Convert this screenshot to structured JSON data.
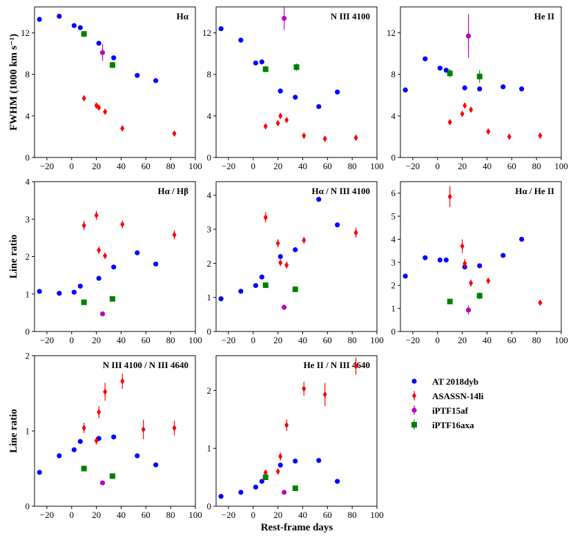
{
  "colors": {
    "AT 2018dyb": "#0000ff",
    "ASASSN-14li": "#ff0000",
    "iPTF15af": "#bf00bf",
    "iPTF16axa": "#008000"
  },
  "chart_data": [
    {
      "type": "scatter",
      "title": "Hα",
      "ylabel": "FWHM (1000 km s⁻¹)",
      "xlim": [
        -30,
        100
      ],
      "ylim": [
        0,
        14.5
      ],
      "xticks": [
        -20,
        0,
        20,
        40,
        60,
        80,
        100
      ],
      "xtick_labels": [
        "−20",
        "0",
        "20",
        "40",
        "60",
        "80",
        "100"
      ],
      "yticks": [
        0,
        4,
        8,
        12
      ],
      "ytick_labels": [
        "0",
        "4",
        "8",
        "12"
      ],
      "series": [
        {
          "name": "AT 2018dyb",
          "marker": "circle",
          "points": [
            [
              -26,
              13.3
            ],
            [
              -10,
              13.6
            ],
            [
              2,
              12.7
            ],
            [
              7,
              12.5
            ],
            [
              22,
              11.0
            ],
            [
              34,
              9.6
            ],
            [
              53,
              7.9
            ],
            [
              68,
              7.4
            ]
          ]
        },
        {
          "name": "ASASSN-14li",
          "marker": "diamond",
          "points": [
            [
              10,
              5.7,
              0.15
            ],
            [
              20,
              5.0,
              0.15
            ],
            [
              22,
              4.8,
              0.15
            ],
            [
              27,
              4.4,
              0.15
            ],
            [
              41,
              2.8,
              0.1
            ],
            [
              83,
              2.3,
              0.1
            ]
          ]
        },
        {
          "name": "iPTF15af",
          "marker": "circle",
          "points": [
            [
              25,
              10.1,
              0.8
            ]
          ]
        },
        {
          "name": "iPTF16axa",
          "marker": "square",
          "points": [
            [
              10,
              11.9,
              0.3
            ],
            [
              33,
              8.9,
              0.3
            ]
          ]
        }
      ]
    },
    {
      "type": "scatter",
      "title": "N III 4100",
      "xlim": [
        -30,
        100
      ],
      "ylim": [
        0,
        14.5
      ],
      "xticks": [
        -20,
        0,
        20,
        40,
        60,
        80,
        100
      ],
      "xtick_labels": [
        "−20",
        "0",
        "20",
        "40",
        "60",
        "80",
        "100"
      ],
      "yticks": [
        0,
        4,
        8,
        12
      ],
      "ytick_labels": [
        "0",
        "4",
        "8",
        "12"
      ],
      "series": [
        {
          "name": "AT 2018dyb",
          "marker": "circle",
          "points": [
            [
              -26,
              12.4
            ],
            [
              -10,
              11.3
            ],
            [
              2,
              9.1
            ],
            [
              7,
              9.2
            ],
            [
              22,
              6.4
            ],
            [
              34,
              5.8
            ],
            [
              53,
              4.9
            ],
            [
              68,
              6.3
            ]
          ]
        },
        {
          "name": "ASASSN-14li",
          "marker": "diamond",
          "points": [
            [
              10,
              3.0,
              0.2
            ],
            [
              20,
              3.3,
              0.2
            ],
            [
              22,
              4.0,
              0.2
            ],
            [
              27,
              3.6,
              0.2
            ],
            [
              41,
              2.1,
              0.15
            ],
            [
              58,
              1.8,
              0.15
            ],
            [
              83,
              1.9,
              0.15
            ]
          ]
        },
        {
          "name": "iPTF15af",
          "marker": "circle",
          "points": [
            [
              25,
              13.4,
              1.1
            ]
          ]
        },
        {
          "name": "iPTF16axa",
          "marker": "square",
          "points": [
            [
              10,
              8.5,
              0.3
            ],
            [
              35,
              8.7,
              0.35
            ]
          ]
        }
      ]
    },
    {
      "type": "scatter",
      "title": "He II",
      "xlim": [
        -30,
        100
      ],
      "ylim": [
        0,
        14.5
      ],
      "xticks": [
        -20,
        0,
        20,
        40,
        60,
        80,
        100
      ],
      "xtick_labels": [
        "−20",
        "0",
        "20",
        "40",
        "60",
        "80",
        "100"
      ],
      "yticks": [
        0,
        4,
        8,
        12
      ],
      "ytick_labels": [
        "0",
        "4",
        "8",
        "12"
      ],
      "series": [
        {
          "name": "AT 2018dyb",
          "marker": "circle",
          "points": [
            [
              -26,
              6.5
            ],
            [
              -10,
              9.5
            ],
            [
              2,
              8.6
            ],
            [
              7,
              8.4
            ],
            [
              22,
              6.7
            ],
            [
              34,
              6.6
            ],
            [
              53,
              6.8
            ],
            [
              68,
              6.6
            ]
          ]
        },
        {
          "name": "ASASSN-14li",
          "marker": "diamond",
          "points": [
            [
              10,
              3.4,
              0.2
            ],
            [
              20,
              4.2,
              0.2
            ],
            [
              22,
              5.0,
              0.25
            ],
            [
              27,
              4.6,
              0.2
            ],
            [
              41,
              2.5,
              0.2
            ],
            [
              58,
              2.0,
              0.2
            ],
            [
              83,
              2.1,
              0.2
            ]
          ]
        },
        {
          "name": "iPTF15af",
          "marker": "circle",
          "points": [
            [
              25,
              11.7,
              2.1
            ]
          ]
        },
        {
          "name": "iPTF16axa",
          "marker": "square",
          "points": [
            [
              10,
              8.1,
              0.4
            ],
            [
              34,
              7.8,
              0.6
            ]
          ]
        }
      ]
    },
    {
      "type": "scatter",
      "title": "Hα / Hβ",
      "ylabel": "Line ratio",
      "xlim": [
        -30,
        100
      ],
      "ylim": [
        0,
        4
      ],
      "xticks": [
        -20,
        0,
        20,
        40,
        60,
        80,
        100
      ],
      "xtick_labels": [
        "−20",
        "0",
        "20",
        "40",
        "60",
        "80",
        "100"
      ],
      "yticks": [
        0,
        1,
        2,
        3,
        4
      ],
      "ytick_labels": [
        "0",
        "1",
        "2",
        "3",
        "4"
      ],
      "series": [
        {
          "name": "AT 2018dyb",
          "marker": "circle",
          "points": [
            [
              -26,
              1.07
            ],
            [
              -10,
              1.02
            ],
            [
              2,
              1.05
            ],
            [
              7,
              1.21
            ],
            [
              22,
              1.42
            ],
            [
              34,
              1.72
            ],
            [
              53,
              2.1
            ],
            [
              68,
              1.8
            ]
          ]
        },
        {
          "name": "ASASSN-14li",
          "marker": "diamond",
          "points": [
            [
              10,
              2.83,
              0.12
            ],
            [
              20,
              3.1,
              0.12
            ],
            [
              22,
              2.17,
              0.1
            ],
            [
              27,
              2.02,
              0.08
            ],
            [
              41,
              2.86,
              0.1
            ],
            [
              83,
              2.58,
              0.12
            ]
          ]
        },
        {
          "name": "iPTF15af",
          "marker": "circle",
          "points": [
            [
              25,
              0.47,
              0.03
            ]
          ]
        },
        {
          "name": "iPTF16axa",
          "marker": "square",
          "points": [
            [
              10,
              0.78,
              0.03
            ],
            [
              33,
              0.87,
              0.03
            ]
          ]
        }
      ]
    },
    {
      "type": "scatter",
      "title": "Hα / N III 4100",
      "xlim": [
        -30,
        100
      ],
      "ylim": [
        0,
        4.4
      ],
      "xticks": [
        -20,
        0,
        20,
        40,
        60,
        80,
        100
      ],
      "xtick_labels": [
        "−20",
        "0",
        "20",
        "40",
        "60",
        "80",
        "100"
      ],
      "yticks": [
        0,
        1,
        2,
        3,
        4
      ],
      "ytick_labels": [
        "0",
        "1",
        "2",
        "3",
        "4"
      ],
      "series": [
        {
          "name": "AT 2018dyb",
          "marker": "circle",
          "points": [
            [
              -26,
              0.96
            ],
            [
              -10,
              1.18
            ],
            [
              2,
              1.35
            ],
            [
              7,
              1.6
            ],
            [
              22,
              2.2
            ],
            [
              34,
              2.4
            ],
            [
              53,
              3.88
            ],
            [
              68,
              3.13
            ]
          ]
        },
        {
          "name": "ASASSN-14li",
          "marker": "diamond",
          "points": [
            [
              10,
              3.35,
              0.15
            ],
            [
              20,
              2.59,
              0.12
            ],
            [
              22,
              2.02,
              0.1
            ],
            [
              27,
              1.95,
              0.1
            ],
            [
              41,
              2.68,
              0.1
            ],
            [
              83,
              2.9,
              0.15
            ]
          ]
        },
        {
          "name": "iPTF15af",
          "marker": "circle",
          "points": [
            [
              25,
              0.71,
              0.08
            ]
          ]
        },
        {
          "name": "iPTF16axa",
          "marker": "square",
          "points": [
            [
              10,
              1.36,
              0.05
            ],
            [
              34,
              1.24,
              0.08
            ]
          ]
        }
      ]
    },
    {
      "type": "scatter",
      "title": "Hα / He II",
      "xlim": [
        -30,
        100
      ],
      "ylim": [
        0,
        6.5
      ],
      "xticks": [
        -20,
        0,
        20,
        40,
        60,
        80,
        100
      ],
      "xtick_labels": [
        "−20",
        "0",
        "20",
        "40",
        "60",
        "80",
        "100"
      ],
      "yticks": [
        0,
        1,
        2,
        3,
        4,
        5,
        6
      ],
      "ytick_labels": [
        "0",
        "1",
        "2",
        "3",
        "4",
        "5",
        "6"
      ],
      "series": [
        {
          "name": "AT 2018dyb",
          "marker": "circle",
          "points": [
            [
              -26,
              2.4
            ],
            [
              -10,
              3.2
            ],
            [
              2,
              3.1
            ],
            [
              7,
              3.1
            ],
            [
              22,
              2.8
            ],
            [
              34,
              2.85
            ],
            [
              53,
              3.3
            ],
            [
              68,
              4.0
            ]
          ]
        },
        {
          "name": "ASASSN-14li",
          "marker": "diamond",
          "points": [
            [
              10,
              5.85,
              0.45
            ],
            [
              20,
              3.7,
              0.3
            ],
            [
              22,
              2.95,
              0.2
            ],
            [
              27,
              2.1,
              0.15
            ],
            [
              41,
              2.2,
              0.12
            ],
            [
              83,
              1.25,
              0.1
            ]
          ]
        },
        {
          "name": "iPTF15af",
          "marker": "circle",
          "points": [
            [
              25,
              0.93,
              0.2
            ]
          ]
        },
        {
          "name": "iPTF16axa",
          "marker": "square",
          "points": [
            [
              10,
              1.3,
              0.08
            ],
            [
              34,
              1.55,
              0.15
            ]
          ]
        }
      ]
    },
    {
      "type": "scatter",
      "title": "N III 4100 / N III 4640",
      "ylabel": "Line ratio",
      "xlim": [
        -30,
        100
      ],
      "ylim": [
        0,
        2
      ],
      "xticks": [
        -20,
        0,
        20,
        40,
        60,
        80,
        100
      ],
      "xtick_labels": [
        "−20",
        "0",
        "20",
        "40",
        "60",
        "80",
        "100"
      ],
      "yticks": [
        0,
        1,
        2
      ],
      "ytick_labels": [
        "0",
        "1",
        "2"
      ],
      "series": [
        {
          "name": "AT 2018dyb",
          "marker": "circle",
          "points": [
            [
              -26,
              0.45
            ],
            [
              -10,
              0.67
            ],
            [
              2,
              0.75
            ],
            [
              7,
              0.86
            ],
            [
              22,
              0.9
            ],
            [
              34,
              0.92
            ],
            [
              53,
              0.67
            ],
            [
              68,
              0.55
            ]
          ]
        },
        {
          "name": "ASASSN-14li",
          "marker": "diamond",
          "points": [
            [
              10,
              1.04,
              0.07
            ],
            [
              20,
              0.87,
              0.05
            ],
            [
              22,
              1.25,
              0.08
            ],
            [
              27,
              1.52,
              0.12
            ],
            [
              41,
              1.66,
              0.1
            ],
            [
              58,
              1.02,
              0.13
            ],
            [
              83,
              1.04,
              0.1
            ]
          ]
        },
        {
          "name": "iPTF15af",
          "marker": "circle",
          "points": [
            [
              25,
              0.31,
              0.03
            ]
          ]
        },
        {
          "name": "iPTF16axa",
          "marker": "square",
          "points": [
            [
              10,
              0.5,
              0.03
            ],
            [
              33,
              0.4,
              0.03
            ]
          ]
        }
      ]
    },
    {
      "type": "scatter",
      "title": "He II / N III 4640",
      "xlim": [
        -30,
        100
      ],
      "ylim": [
        0,
        2.6
      ],
      "xticks": [
        -20,
        0,
        20,
        40,
        60,
        80,
        100
      ],
      "xtick_labels": [
        "−20",
        "0",
        "20",
        "40",
        "60",
        "80",
        "100"
      ],
      "yticks": [
        0,
        1,
        2
      ],
      "ytick_labels": [
        "0",
        "1",
        "2"
      ],
      "series": [
        {
          "name": "AT 2018dyb",
          "marker": "circle",
          "points": [
            [
              -26,
              0.17
            ],
            [
              -10,
              0.24
            ],
            [
              2,
              0.33
            ],
            [
              7,
              0.43
            ],
            [
              22,
              0.71
            ],
            [
              34,
              0.78
            ],
            [
              53,
              0.79
            ],
            [
              68,
              0.43
            ]
          ]
        },
        {
          "name": "ASASSN-14li",
          "marker": "diamond",
          "points": [
            [
              10,
              0.58,
              0.05
            ],
            [
              20,
              0.6,
              0.05
            ],
            [
              22,
              0.86,
              0.07
            ],
            [
              27,
              1.4,
              0.1
            ],
            [
              41,
              2.03,
              0.12
            ],
            [
              58,
              1.93,
              0.2
            ],
            [
              83,
              2.42,
              0.15
            ]
          ]
        },
        {
          "name": "iPTF15af",
          "marker": "circle",
          "points": [
            [
              25,
              0.24,
              0.03
            ]
          ]
        },
        {
          "name": "iPTF16axa",
          "marker": "square",
          "points": [
            [
              10,
              0.5,
              0.03
            ],
            [
              34,
              0.31,
              0.03
            ]
          ]
        }
      ]
    }
  ],
  "xlabel": "Rest-frame days",
  "legend": {
    "placement": "bottom-right",
    "entries": [
      {
        "label": "AT 2018dyb",
        "marker": "circle"
      },
      {
        "label": "ASASSN-14li",
        "marker": "diamond"
      },
      {
        "label": "iPTF15af",
        "marker": "circle"
      },
      {
        "label": "iPTF16axa",
        "marker": "square"
      }
    ]
  }
}
